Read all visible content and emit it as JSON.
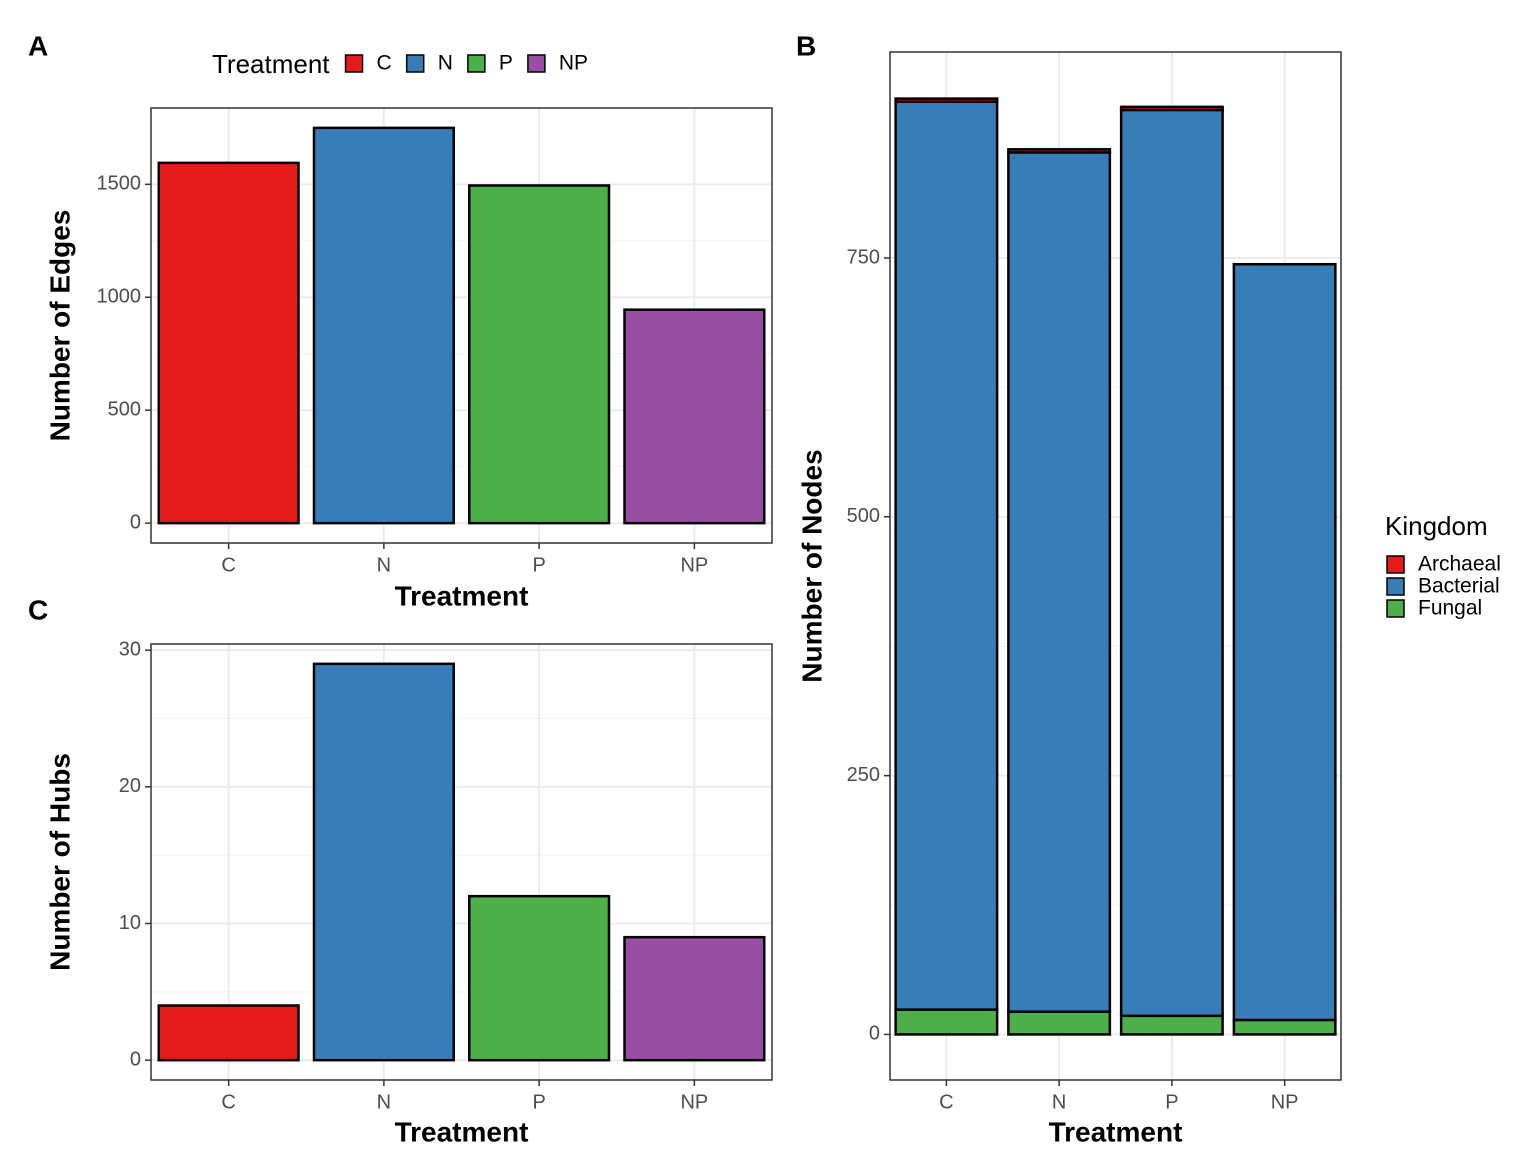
{
  "chart_data": [
    {
      "type": "bar",
      "panel_label": "A",
      "categories": [
        "C",
        "N",
        "P",
        "NP"
      ],
      "values": [
        1595,
        1750,
        1495,
        945
      ],
      "colors": [
        "#e41a1c",
        "#377eb8",
        "#4daf4a",
        "#984ea3"
      ],
      "x_label": "Treatment",
      "y_label": "Number of Edges",
      "ylim": [
        -88,
        1838
      ],
      "yticks": [
        0,
        500,
        1000,
        1500
      ],
      "grid": true,
      "legend_title": "Treatment",
      "legend_position": "top"
    },
    {
      "type": "stacked_bar",
      "panel_label": "B",
      "categories": [
        "C",
        "N",
        "P",
        "NP"
      ],
      "series": [
        {
          "name": "Archaeal",
          "color": "#e41a1c",
          "values": [
            3,
            3,
            3,
            0
          ]
        },
        {
          "name": "Bacterial",
          "color": "#377eb8",
          "values": [
            877,
            830,
            875,
            730
          ]
        },
        {
          "name": "Fungal",
          "color": "#4daf4a",
          "values": [
            24,
            22,
            18,
            14
          ]
        }
      ],
      "x_label": "Treatment",
      "y_label": "Number of Nodes",
      "ylim": [
        -44,
        949
      ],
      "yticks": [
        0,
        250,
        500,
        750
      ],
      "grid": true,
      "legend_title": "Kingdom",
      "legend_position": "right"
    },
    {
      "type": "bar",
      "panel_label": "C",
      "categories": [
        "C",
        "N",
        "P",
        "NP"
      ],
      "values": [
        4,
        29,
        12,
        9
      ],
      "colors": [
        "#e41a1c",
        "#377eb8",
        "#4daf4a",
        "#984ea3"
      ],
      "x_label": "Treatment",
      "y_label": "Number of Hubs",
      "ylim": [
        -1.45,
        30.45
      ],
      "yticks": [
        0,
        10,
        20,
        30
      ],
      "grid": true
    }
  ]
}
